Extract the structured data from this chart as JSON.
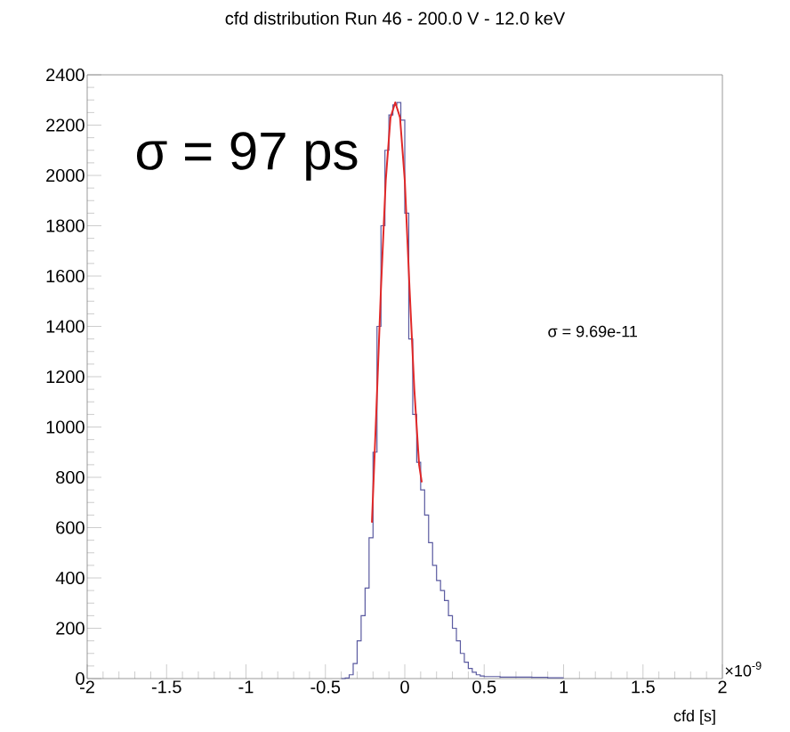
{
  "chart_data": {
    "type": "histogram",
    "title": "cfd distribution Run 46 - 200.0 V - 12.0 keV",
    "xlabel": "cfd [s]",
    "annotations": [
      "σ = 97 ps",
      "σ = 9.69e-11",
      "×10$^{-9}$"
    ],
    "bins": [
      -0.4,
      -0.375,
      -0.35,
      -0.325,
      -0.3,
      -0.275,
      -0.25,
      -0.225,
      -0.2,
      -0.175,
      -0.15,
      -0.125,
      -0.1,
      -0.075,
      -0.05,
      -0.025,
      0,
      0.025,
      0.05,
      0.075,
      0.1,
      0.125,
      0.15,
      0.175,
      0.2,
      0.225,
      0.25,
      0.275,
      0.3,
      0.325,
      0.35,
      0.375,
      0.4,
      0.425,
      0.45,
      0.475,
      0.5,
      0.6,
      0.7,
      0.8,
      0.9,
      1.0
    ],
    "values": [
      0,
      2,
      15,
      60,
      150,
      250,
      360,
      560,
      900,
      1400,
      1800,
      2100,
      2240,
      2280,
      2290,
      2220,
      1850,
      1350,
      1050,
      860,
      750,
      650,
      540,
      450,
      390,
      350,
      310,
      250,
      200,
      150,
      100,
      65,
      40,
      25,
      15,
      10,
      8,
      6,
      6,
      5,
      3
    ],
    "color": "#5a5aa0",
    "series": [
      {
        "type": "line",
        "color": "#e02828",
        "x": [
          -0.207,
          -0.18,
          -0.15,
          -0.12,
          -0.09,
          -0.06,
          -0.03,
          0.0,
          0.03,
          0.06,
          0.09,
          0.107
        ],
        "values": [
          620,
          1050,
          1550,
          1980,
          2230,
          2290,
          2230,
          1980,
          1550,
          1150,
          850,
          780
        ]
      }
    ],
    "xlim": [
      -2,
      2
    ],
    "ylim": [
      0,
      2400
    ],
    "xticks": [
      -2,
      -1.5,
      -1,
      -0.5,
      0,
      0.5,
      1,
      1.5,
      2
    ],
    "yticks": [
      0,
      200,
      400,
      600,
      800,
      1000,
      1200,
      1400,
      1600,
      1800,
      2000,
      2200,
      2400
    ]
  }
}
